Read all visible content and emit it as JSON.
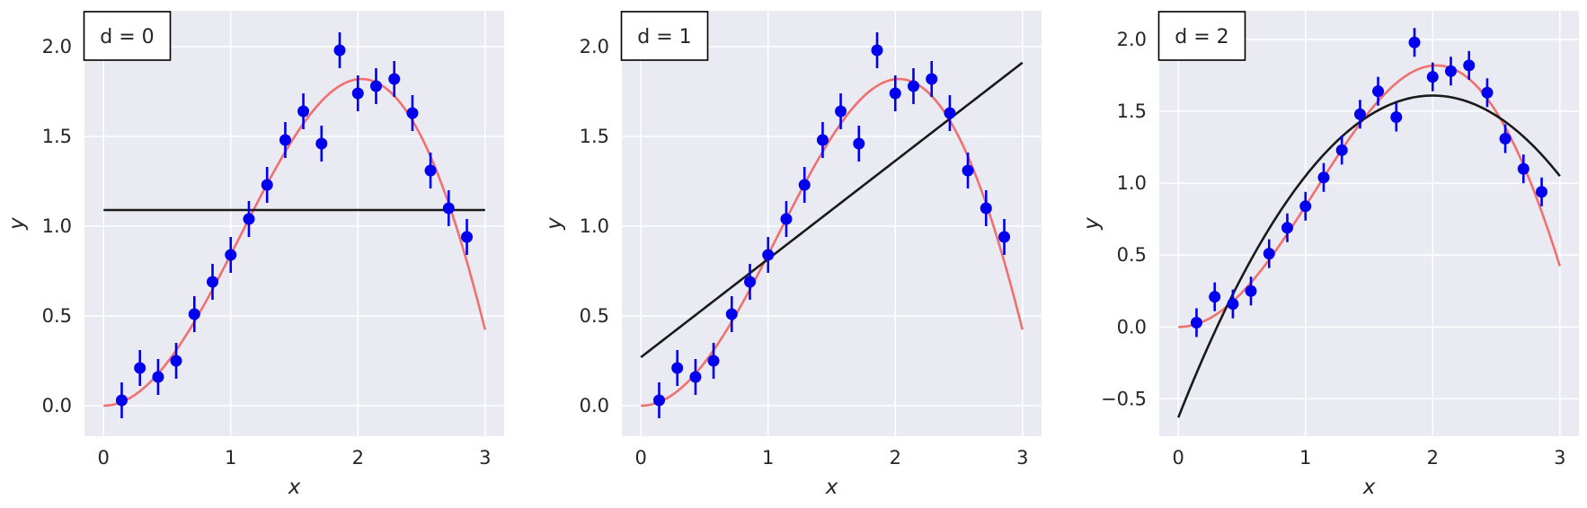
{
  "chart_data": [
    {
      "type": "line",
      "title": "",
      "annotation": "d = 0",
      "xlabel": "x",
      "ylabel": "y",
      "xlim": [
        -0.15,
        3.15
      ],
      "ylim": [
        -0.17,
        2.2
      ],
      "xticks": [
        0,
        1,
        2,
        3
      ],
      "yticks": [
        0.0,
        0.5,
        1.0,
        1.5,
        2.0
      ],
      "xtick_labels": [
        "0",
        "1",
        "2",
        "3"
      ],
      "ytick_labels": [
        "0.0",
        "0.5",
        "1.0",
        "1.5",
        "2.0"
      ],
      "grid": true,
      "true_curve": {
        "x_range": [
          0,
          3
        ],
        "formula": "x*sin(x)",
        "color": "#f07070"
      },
      "fit_curve": {
        "degree": 0,
        "coefficients": [
          1.09
        ],
        "color": "#1a1a1a"
      },
      "points": {
        "x": [
          0.143,
          0.286,
          0.429,
          0.571,
          0.714,
          0.857,
          1.0,
          1.143,
          1.286,
          1.429,
          1.571,
          1.714,
          1.857,
          2.0,
          2.143,
          2.286,
          2.429,
          2.571,
          2.714,
          2.857
        ],
        "y": [
          0.03,
          0.21,
          0.16,
          0.25,
          0.51,
          0.69,
          0.84,
          1.04,
          1.23,
          1.48,
          1.64,
          1.46,
          1.98,
          1.74,
          1.78,
          1.82,
          1.63,
          1.31,
          1.1,
          0.94
        ],
        "yerr": 0.1,
        "color": "#0000ee"
      }
    },
    {
      "type": "line",
      "title": "",
      "annotation": "d = 1",
      "xlabel": "x",
      "ylabel": "y",
      "xlim": [
        -0.15,
        3.15
      ],
      "ylim": [
        -0.17,
        2.2
      ],
      "xticks": [
        0,
        1,
        2,
        3
      ],
      "yticks": [
        0.0,
        0.5,
        1.0,
        1.5,
        2.0
      ],
      "xtick_labels": [
        "0",
        "1",
        "2",
        "3"
      ],
      "ytick_labels": [
        "0.0",
        "0.5",
        "1.0",
        "1.5",
        "2.0"
      ],
      "grid": true,
      "true_curve": {
        "x_range": [
          0,
          3
        ],
        "formula": "x*sin(x)",
        "color": "#f07070"
      },
      "fit_curve": {
        "degree": 1,
        "coefficients": [
          0.27,
          0.547
        ],
        "color": "#1a1a1a"
      },
      "points": {
        "x": [
          0.143,
          0.286,
          0.429,
          0.571,
          0.714,
          0.857,
          1.0,
          1.143,
          1.286,
          1.429,
          1.571,
          1.714,
          1.857,
          2.0,
          2.143,
          2.286,
          2.429,
          2.571,
          2.714,
          2.857
        ],
        "y": [
          0.03,
          0.21,
          0.16,
          0.25,
          0.51,
          0.69,
          0.84,
          1.04,
          1.23,
          1.48,
          1.64,
          1.46,
          1.98,
          1.74,
          1.78,
          1.82,
          1.63,
          1.31,
          1.1,
          0.94
        ],
        "yerr": 0.1,
        "color": "#0000ee"
      }
    },
    {
      "type": "line",
      "title": "",
      "annotation": "d = 2",
      "xlabel": "x",
      "ylabel": "y",
      "xlim": [
        -0.15,
        3.15
      ],
      "ylim": [
        -0.76,
        2.2
      ],
      "xticks": [
        0,
        1,
        2,
        3
      ],
      "yticks": [
        -0.5,
        0.0,
        0.5,
        1.0,
        1.5,
        2.0
      ],
      "xtick_labels": [
        "0",
        "1",
        "2",
        "3"
      ],
      "ytick_labels": [
        "−0.5",
        "0.0",
        "0.5",
        "1.0",
        "1.5",
        "2.0"
      ],
      "grid": true,
      "true_curve": {
        "x_range": [
          0,
          3
        ],
        "formula": "x*sin(x)",
        "color": "#f07070"
      },
      "fit_curve": {
        "degree": 2,
        "coefficients": [
          -0.63,
          2.24,
          -0.56
        ],
        "color": "#1a1a1a"
      },
      "points": {
        "x": [
          0.143,
          0.286,
          0.429,
          0.571,
          0.714,
          0.857,
          1.0,
          1.143,
          1.286,
          1.429,
          1.571,
          1.714,
          1.857,
          2.0,
          2.143,
          2.286,
          2.429,
          2.571,
          2.714,
          2.857
        ],
        "y": [
          0.03,
          0.21,
          0.16,
          0.25,
          0.51,
          0.69,
          0.84,
          1.04,
          1.23,
          1.48,
          1.64,
          1.46,
          1.98,
          1.74,
          1.78,
          1.82,
          1.63,
          1.31,
          1.1,
          0.94
        ],
        "yerr": 0.1,
        "color": "#0000ee"
      }
    }
  ]
}
